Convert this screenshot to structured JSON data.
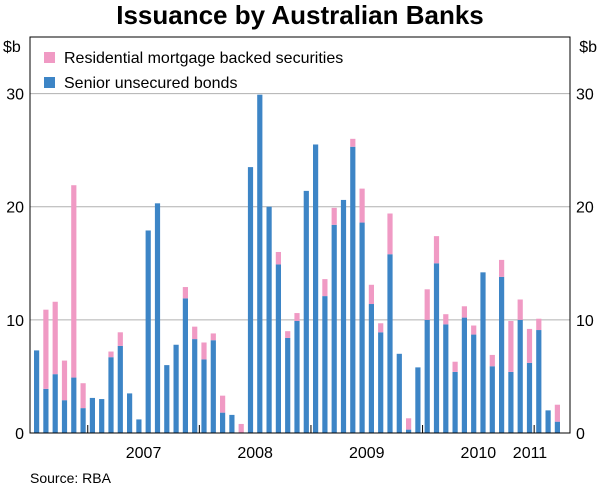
{
  "chart_data": {
    "type": "bar",
    "stacked": true,
    "title": "Issuance by Australian Banks",
    "ylabel_left": "$b",
    "ylabel_right": "$b",
    "ylim": [
      0,
      35
    ],
    "yticks": [
      0,
      10,
      20,
      30
    ],
    "xtick_labels": [
      "2007",
      "2008",
      "2009",
      "2010",
      "2011"
    ],
    "x_unit": "month",
    "x_start": "2006-07",
    "x_end": "2011-04",
    "legend": {
      "position": "top-left"
    },
    "grid": "horizontal",
    "series": [
      {
        "name": "Senior unsecured bonds",
        "color": "#3d85c6",
        "values": [
          7.3,
          3.9,
          5.2,
          2.9,
          4.9,
          2.2,
          3.1,
          3.0,
          6.7,
          7.7,
          3.5,
          1.2,
          17.9,
          20.3,
          6.0,
          7.8,
          11.9,
          8.3,
          6.5,
          8.2,
          1.8,
          1.6,
          0,
          23.5,
          29.9,
          20.0,
          14.9,
          8.4,
          9.9,
          21.4,
          25.5,
          12.1,
          18.4,
          20.6,
          25.3,
          18.6,
          11.4,
          8.9,
          15.8,
          7.0,
          0.3,
          5.8,
          10.0,
          15.0,
          9.6,
          5.4,
          10.2,
          8.7,
          14.2,
          5.9,
          13.8,
          5.4,
          10.0,
          6.2,
          9.1,
          2.0,
          1.0
        ]
      },
      {
        "name": "Residential mortgage backed securities",
        "color": "#f09ac4",
        "values": [
          0,
          7.0,
          6.4,
          3.5,
          17.0,
          2.2,
          0,
          0,
          0.5,
          1.2,
          0,
          0,
          0,
          0,
          0,
          0,
          1.0,
          1.1,
          1.5,
          0.6,
          1.5,
          0,
          0.8,
          0,
          0,
          0,
          1.1,
          0.6,
          0.7,
          0,
          0,
          1.5,
          1.5,
          0,
          0.7,
          3.0,
          1.7,
          0.8,
          3.6,
          0,
          1.0,
          0,
          2.7,
          2.4,
          0.9,
          0.9,
          1.0,
          0.8,
          0,
          1.0,
          1.5,
          4.5,
          1.8,
          3.0,
          1.0,
          0,
          1.5
        ]
      }
    ]
  },
  "source": "Source: RBA"
}
